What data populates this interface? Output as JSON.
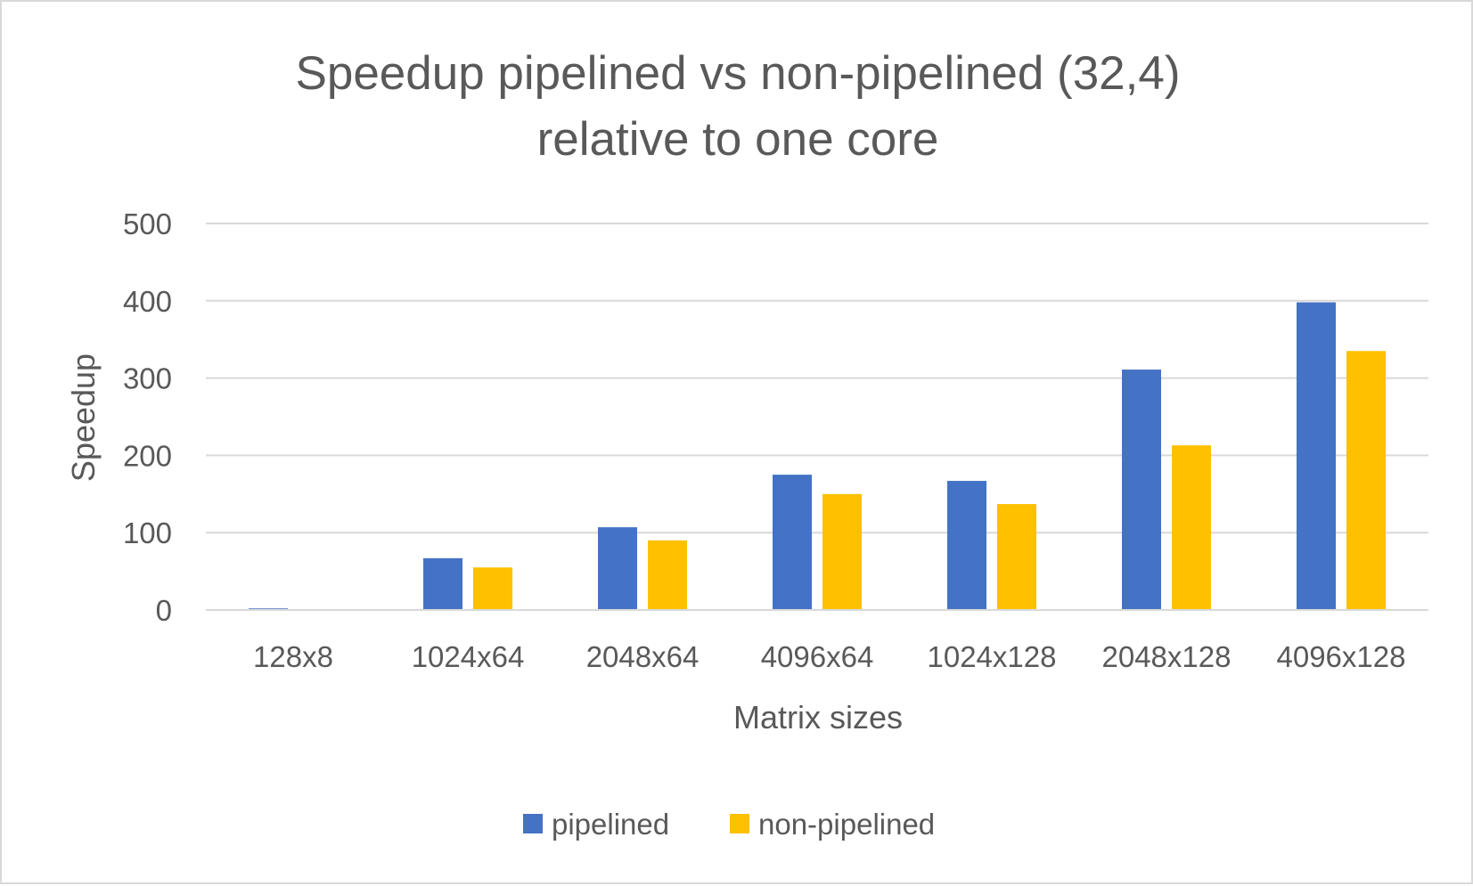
{
  "chart_data": {
    "type": "bar",
    "title": [
      "Speedup pipelined vs non-pipelined (32,4)",
      "relative to one core"
    ],
    "xlabel": "Matrix sizes",
    "ylabel": "Speedup",
    "categories": [
      "128x8",
      "1024x64",
      "2048x64",
      "4096x64",
      "1024x128",
      "2048x128",
      "4096x128"
    ],
    "series": [
      {
        "name": "pipelined",
        "color": "#4472c4",
        "values": [
          2,
          67,
          107,
          175,
          167,
          311,
          398
        ]
      },
      {
        "name": "non-pipelined",
        "color": "#ffc000",
        "values": [
          0,
          55,
          90,
          150,
          137,
          213,
          335
        ]
      }
    ],
    "ylim": [
      0,
      500
    ],
    "yticks": [
      0,
      100,
      200,
      300,
      400,
      500
    ],
    "grid": true,
    "legend_position": "bottom"
  }
}
